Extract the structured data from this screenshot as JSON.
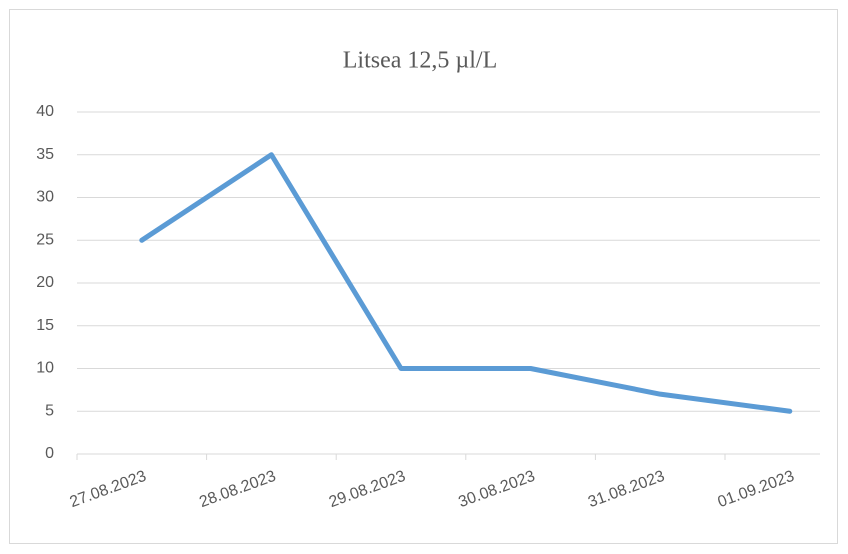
{
  "chart_data": {
    "type": "line",
    "title": "Litsea 12,5 µl/L",
    "categories": [
      "27.08.2023",
      "28.08.2023",
      "29.08.2023",
      "30.08.2023",
      "31.08.2023",
      "01.09.2023"
    ],
    "values": [
      25,
      35,
      10,
      10,
      7,
      5
    ],
    "color": "#5b9bd5",
    "ylim": [
      0,
      40
    ],
    "yticks": [
      0,
      5,
      10,
      15,
      20,
      25,
      30,
      35,
      40
    ],
    "grid": true
  }
}
